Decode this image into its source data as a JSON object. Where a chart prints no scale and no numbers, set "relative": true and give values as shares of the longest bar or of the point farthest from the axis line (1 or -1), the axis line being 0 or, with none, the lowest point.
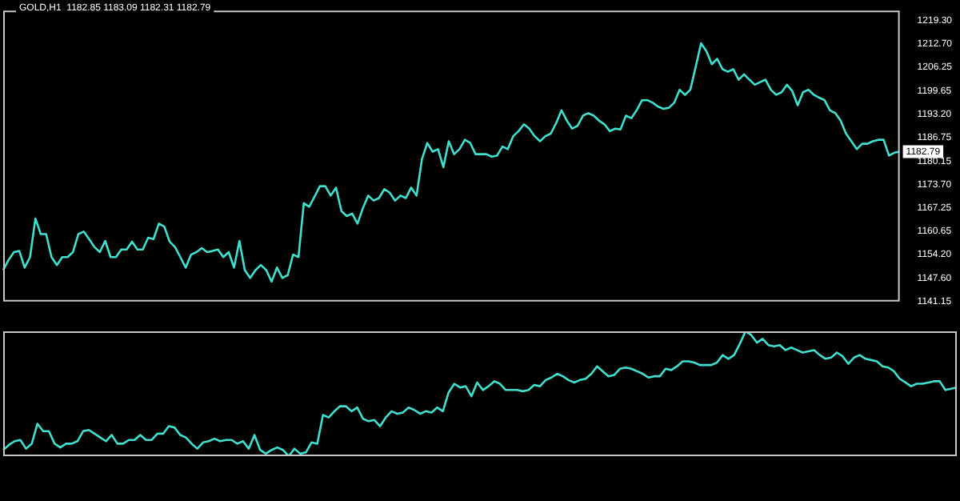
{
  "chart_data": [
    {
      "type": "line",
      "title": "GOLD,H1  1182.85 1183.09 1182.31 1182.79",
      "categories": [
        null,
        null,
        null,
        null,
        null,
        null,
        null,
        null,
        null,
        null,
        null,
        null,
        null,
        null,
        null,
        null,
        null,
        null,
        null,
        null,
        null,
        null,
        null,
        null,
        null,
        null,
        null,
        null,
        null,
        null,
        null,
        null,
        null,
        null,
        null,
        null,
        null,
        null,
        null,
        null,
        null,
        null,
        null,
        null,
        null,
        null,
        null,
        null,
        null,
        null,
        null,
        null,
        null,
        null,
        null,
        null,
        null,
        null,
        null,
        null,
        null,
        null,
        null,
        null,
        null,
        null,
        null,
        null,
        null,
        null,
        null,
        null,
        null,
        null,
        null,
        null,
        null,
        null,
        null,
        null,
        null,
        null,
        null,
        null,
        null,
        null,
        null,
        null,
        null,
        null,
        null,
        null,
        null,
        null,
        null,
        null,
        null,
        null,
        null,
        null,
        null,
        null,
        null,
        null,
        null,
        null,
        null,
        null,
        null,
        null,
        null,
        null,
        null,
        null,
        null,
        null,
        null,
        null,
        null,
        null,
        null,
        null,
        null,
        null,
        null,
        null,
        null,
        null,
        null,
        null,
        null,
        null,
        null,
        null,
        null,
        null,
        null,
        null,
        null,
        null,
        null,
        null,
        null,
        null,
        null,
        null,
        null,
        null,
        null,
        null,
        null,
        null,
        null,
        null,
        null,
        null,
        null,
        null,
        null,
        null,
        null,
        null,
        null,
        null,
        null,
        null,
        null,
        null
      ],
      "series": [
        {
          "color": "#40e0d0",
          "values": [
            1149.9,
            1152.7,
            1154.9,
            1155.2,
            1150.6,
            1153.5,
            1164.2,
            1159.9,
            1159.9,
            1153.5,
            1151.3,
            1153.5,
            1153.5,
            1154.9,
            1159.9,
            1160.6,
            1158.5,
            1156.3,
            1154.9,
            1158.0,
            1153.5,
            1153.5,
            1155.6,
            1155.6,
            1157.8,
            1155.6,
            1155.6,
            1158.9,
            1158.5,
            1162.8,
            1162.0,
            1157.8,
            1156.3,
            1153.5,
            1150.6,
            1154.2,
            1154.9,
            1156.0,
            1154.9,
            1155.2,
            1155.6,
            1153.5,
            1154.9,
            1150.6,
            1158.0,
            1149.9,
            1147.7,
            1149.9,
            1151.3,
            1149.9,
            1146.7,
            1150.6,
            1147.7,
            1148.5,
            1154.2,
            1153.5,
            1168.5,
            1167.5,
            1170.3,
            1173.2,
            1173.2,
            1170.6,
            1172.8,
            1166.3,
            1164.9,
            1165.6,
            1162.8,
            1167.1,
            1170.6,
            1169.2,
            1169.9,
            1172.4,
            1171.4,
            1169.2,
            1170.6,
            1169.9,
            1172.8,
            1170.6,
            1180.7,
            1185.2,
            1182.8,
            1183.5,
            1178.5,
            1185.7,
            1182.1,
            1183.5,
            1186.1,
            1185.2,
            1182.1,
            1182.1,
            1182.1,
            1181.4,
            1181.7,
            1184.2,
            1183.5,
            1187.1,
            1188.5,
            1190.4,
            1189.2,
            1187.1,
            1185.7,
            1187.1,
            1187.8,
            1190.7,
            1194.3,
            1191.4,
            1189.2,
            1190.0,
            1192.8,
            1193.5,
            1192.8,
            1191.4,
            1190.4,
            1188.5,
            1189.2,
            1189.0,
            1192.8,
            1192.1,
            1194.3,
            1197.1,
            1197.1,
            1196.4,
            1195.3,
            1194.7,
            1195.0,
            1196.4,
            1200.0,
            1198.6,
            1200.0,
            1206.4,
            1212.9,
            1210.7,
            1207.1,
            1208.6,
            1205.7,
            1205.0,
            1205.7,
            1202.8,
            1204.3,
            1202.8,
            1201.4,
            1202.1,
            1202.8,
            1200.0,
            1198.6,
            1199.3,
            1201.4,
            1199.6,
            1195.7,
            1199.3,
            1200.0,
            1198.6,
            1197.8,
            1197.1,
            1194.3,
            1193.5,
            1191.4,
            1187.8,
            1185.7,
            1183.5,
            1185.0,
            1185.0,
            1185.7,
            1186.1,
            1186.1,
            1181.7,
            1182.5,
            1182.8
          ]
        }
      ],
      "ylim": [
        1141.15,
        1222.0
      ],
      "yticks": [
        {
          "value": 1141.15,
          "label": "1141.15"
        },
        {
          "value": 1147.6,
          "label": "1147.60"
        },
        {
          "value": 1154.2,
          "label": "1154.20"
        },
        {
          "value": 1160.65,
          "label": "1160.65"
        },
        {
          "value": 1167.25,
          "label": "1167.25"
        },
        {
          "value": 1173.7,
          "label": "1173.70"
        },
        {
          "value": 1180.15,
          "label": "1180.15"
        },
        {
          "value": 1186.75,
          "label": "1186.75"
        },
        {
          "value": 1193.2,
          "label": "1193.20"
        },
        {
          "value": 1199.65,
          "label": "1199.65"
        },
        {
          "value": 1206.25,
          "label": "1206.25"
        },
        {
          "value": 1212.7,
          "label": "1212.70"
        },
        {
          "value": 1219.3,
          "label": "1219.30"
        }
      ],
      "annotations": [
        {
          "text": "1182.79",
          "y": 1182.79
        }
      ],
      "tick_labels": "y",
      "marker": "none"
    },
    {
      "type": "line",
      "relative": true,
      "categories": [
        null,
        null,
        null,
        null,
        null,
        null,
        null,
        null,
        null,
        null,
        null,
        null,
        null,
        null,
        null,
        null,
        null,
        null,
        null,
        null,
        null,
        null,
        null,
        null,
        null,
        null,
        null,
        null,
        null,
        null,
        null,
        null,
        null,
        null,
        null,
        null,
        null,
        null,
        null,
        null,
        null,
        null,
        null,
        null,
        null,
        null,
        null,
        null,
        null,
        null,
        null,
        null,
        null,
        null,
        null,
        null,
        null,
        null,
        null,
        null,
        null,
        null,
        null,
        null,
        null,
        null,
        null,
        null,
        null,
        null,
        null,
        null,
        null,
        null,
        null,
        null,
        null,
        null,
        null,
        null,
        null,
        null,
        null,
        null,
        null,
        null,
        null,
        null,
        null,
        null,
        null,
        null,
        null,
        null,
        null,
        null,
        null,
        null,
        null,
        null,
        null,
        null,
        null,
        null,
        null,
        null,
        null,
        null,
        null,
        null,
        null,
        null,
        null,
        null,
        null,
        null,
        null,
        null,
        null,
        null,
        null,
        null,
        null,
        null,
        null,
        null,
        null,
        null,
        null,
        null,
        null,
        null,
        null,
        null,
        null,
        null,
        null,
        null,
        null,
        null,
        null,
        null,
        null,
        null,
        null,
        null,
        null,
        null,
        null,
        null,
        null,
        null,
        null,
        null,
        null,
        null,
        null,
        null,
        null,
        null,
        null,
        null,
        null,
        null,
        null,
        null,
        null,
        null
      ],
      "series": [
        {
          "color": "#40e0d0",
          "values": [
            0.05,
            0.09,
            0.12,
            0.13,
            0.06,
            0.1,
            0.26,
            0.2,
            0.2,
            0.1,
            0.07,
            0.1,
            0.1,
            0.12,
            0.2,
            0.21,
            0.18,
            0.15,
            0.12,
            0.17,
            0.1,
            0.1,
            0.13,
            0.13,
            0.17,
            0.13,
            0.13,
            0.18,
            0.18,
            0.24,
            0.23,
            0.17,
            0.15,
            0.1,
            0.06,
            0.11,
            0.12,
            0.14,
            0.12,
            0.13,
            0.13,
            0.1,
            0.12,
            0.06,
            0.17,
            0.05,
            0.02,
            0.05,
            0.07,
            0.05,
            0,
            0.06,
            0.02,
            0.03,
            0.11,
            0.1,
            0.33,
            0.31,
            0.36,
            0.4,
            0.4,
            0.36,
            0.39,
            0.3,
            0.28,
            0.29,
            0.24,
            0.31,
            0.36,
            0.34,
            0.35,
            0.39,
            0.37,
            0.34,
            0.36,
            0.35,
            0.39,
            0.36,
            0.51,
            0.58,
            0.55,
            0.56,
            0.48,
            0.59,
            0.53,
            0.56,
            0.6,
            0.58,
            0.53,
            0.53,
            0.53,
            0.52,
            0.53,
            0.57,
            0.56,
            0.61,
            0.63,
            0.66,
            0.64,
            0.61,
            0.59,
            0.61,
            0.62,
            0.66,
            0.72,
            0.68,
            0.64,
            0.65,
            0.7,
            0.71,
            0.7,
            0.68,
            0.66,
            0.63,
            0.64,
            0.64,
            0.7,
            0.69,
            0.72,
            0.76,
            0.76,
            0.75,
            0.73,
            0.73,
            0.73,
            0.75,
            0.81,
            0.78,
            0.81,
            0.9,
            1,
            0.97,
            0.91,
            0.94,
            0.89,
            0.88,
            0.89,
            0.85,
            0.87,
            0.85,
            0.83,
            0.84,
            0.85,
            0.81,
            0.78,
            0.79,
            0.83,
            0.8,
            0.74,
            0.79,
            0.81,
            0.78,
            0.77,
            0.76,
            0.72,
            0.71,
            0.68,
            0.62,
            0.59,
            0.56,
            0.58,
            0.58,
            0.59,
            0.6,
            0.6,
            0.53,
            0.54,
            0.55
          ]
        }
      ],
      "tick_labels": false,
      "marker": "none"
    }
  ]
}
